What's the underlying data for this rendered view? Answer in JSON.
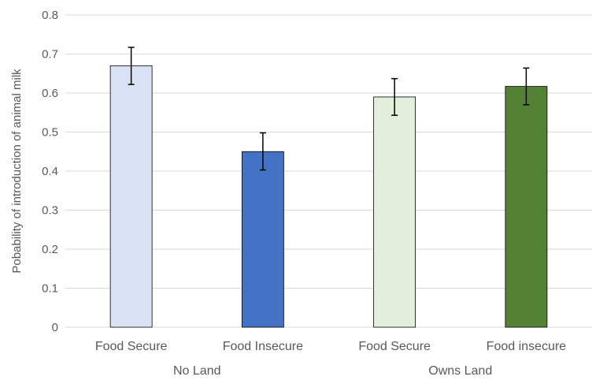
{
  "chart_data": {
    "type": "bar",
    "title": "",
    "ylabel": "Pobability of introduction of animal milk",
    "xlabel": "",
    "ylim": [
      0,
      0.8
    ],
    "yticks": [
      "0",
      "0.1",
      "0.2",
      "0.3",
      "0.4",
      "0.5",
      "0.6",
      "0.7",
      "0.8"
    ],
    "grid": true,
    "categories": [
      "Food Secure",
      "Food Insecure",
      "Food Secure",
      "Food insecure"
    ],
    "groups": [
      {
        "label": "No Land",
        "categories": [
          0,
          1
        ]
      },
      {
        "label": "Owns Land",
        "categories": [
          2,
          3
        ]
      }
    ],
    "values": [
      0.67,
      0.45,
      0.59,
      0.617
    ],
    "error_low": [
      0.622,
      0.403,
      0.543,
      0.57
    ],
    "error_high": [
      0.717,
      0.498,
      0.637,
      0.664
    ],
    "colors": [
      "#DAE3F3",
      "#4472C4",
      "#E2EFDA",
      "#548235"
    ],
    "gridline_color": "#D9D9D9",
    "bar_outline_color": "#000000"
  }
}
